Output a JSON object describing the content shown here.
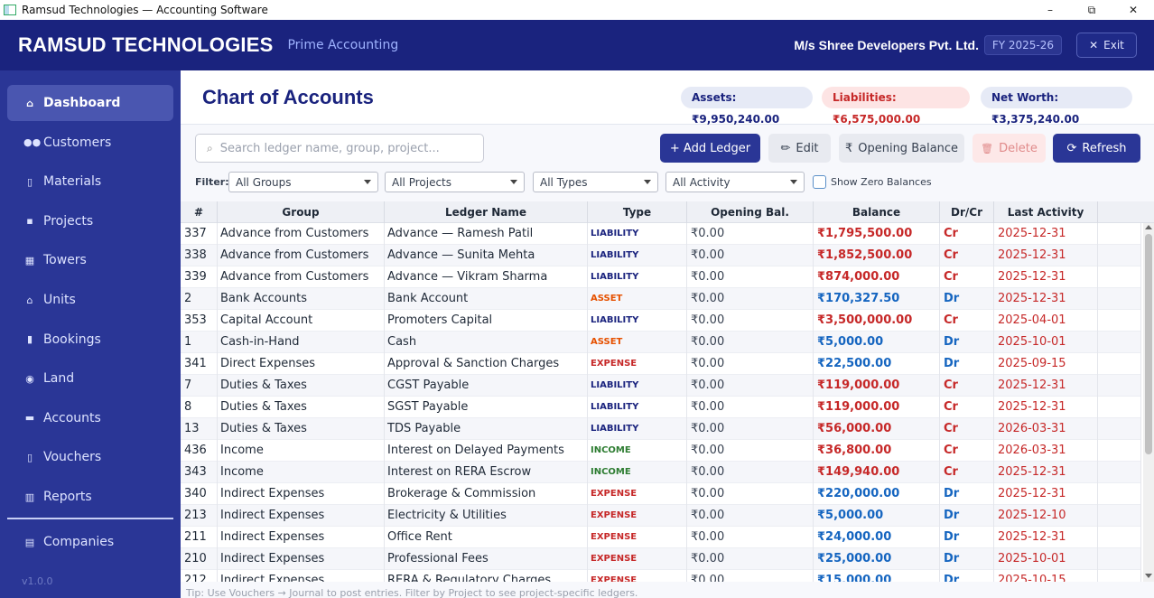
{
  "window": {
    "title": "Ramsud Technologies — Accounting Software",
    "minimize": "–",
    "maximize": "⧉",
    "close": "✕"
  },
  "header": {
    "brand": "RAMSUD TECHNOLOGIES",
    "subtitle": "Prime Accounting",
    "company": "M/s Shree Developers Pvt. Ltd.",
    "fy": "FY 2025-26",
    "exit_icon": "✕",
    "exit_label": "Exit"
  },
  "sidebar": {
    "items": [
      {
        "label": "Dashboard",
        "icon": "⌂",
        "icon_name": "home-icon",
        "active": true
      },
      {
        "label": "Customers",
        "icon": "●●",
        "icon_name": "users-icon",
        "active": false
      },
      {
        "label": "Materials",
        "icon": "▯",
        "icon_name": "material-icon",
        "active": false
      },
      {
        "label": "Projects",
        "icon": "▪",
        "icon_name": "project-icon",
        "active": false
      },
      {
        "label": "Towers",
        "icon": "▦",
        "icon_name": "tower-icon",
        "active": false
      },
      {
        "label": "Units",
        "icon": "⌂",
        "icon_name": "unit-icon",
        "active": false
      },
      {
        "label": "Bookings",
        "icon": "▮",
        "icon_name": "bookings-icon",
        "active": false
      },
      {
        "label": "Land",
        "icon": "◉",
        "icon_name": "globe-icon",
        "active": false
      },
      {
        "label": "Accounts",
        "icon": "▬",
        "icon_name": "accounts-icon",
        "active": false
      },
      {
        "label": "Vouchers",
        "icon": "▯",
        "icon_name": "voucher-icon",
        "active": false
      },
      {
        "label": "Reports",
        "icon": "▥",
        "icon_name": "reports-icon",
        "active": false
      }
    ],
    "companies": {
      "label": "Companies",
      "icon": "▤",
      "icon_name": "companies-icon"
    },
    "version": "v1.0.0"
  },
  "page": {
    "title": "Chart of Accounts",
    "assets": "Assets: ₹9,950,240.00",
    "liabilities": "Liabilities: ₹6,575,000.00",
    "net_worth": "Net Worth: ₹3,375,240.00"
  },
  "toolbar": {
    "search_icon": "⌕",
    "search_placeholder": "Search ledger name, group, project...",
    "add_label": "+ Add Ledger",
    "edit_icon": "✏",
    "edit_label": "Edit",
    "opening_icon": "₹",
    "opening_label": "Opening Balance",
    "delete_icon": "🗑",
    "delete_label": "Delete",
    "refresh_icon": "⟳",
    "refresh_label": "Refresh"
  },
  "filters": {
    "label": "Filter:",
    "groups": "All Groups",
    "projects": "All Projects",
    "types": "All Types",
    "activity": "All Activity",
    "zero_label": "Show Zero Balances"
  },
  "table": {
    "headers": [
      "#",
      "Group",
      "Ledger Name",
      "Type",
      "Opening Bal.",
      "Balance",
      "Dr/Cr",
      "Last Activity"
    ],
    "rows": [
      {
        "num": "337",
        "group": "Advance from Customers",
        "ledger": "Advance — Ramesh Patil",
        "type": "LIABILITY",
        "opening": "₹0.00",
        "balance": "₹1,795,500.00",
        "drcr": "Cr",
        "last": "2025-12-31"
      },
      {
        "num": "338",
        "group": "Advance from Customers",
        "ledger": "Advance — Sunita Mehta",
        "type": "LIABILITY",
        "opening": "₹0.00",
        "balance": "₹1,852,500.00",
        "drcr": "Cr",
        "last": "2025-12-31"
      },
      {
        "num": "339",
        "group": "Advance from Customers",
        "ledger": "Advance — Vikram Sharma",
        "type": "LIABILITY",
        "opening": "₹0.00",
        "balance": "₹874,000.00",
        "drcr": "Cr",
        "last": "2025-12-31"
      },
      {
        "num": "2",
        "group": "Bank Accounts",
        "ledger": "Bank Account",
        "type": "ASSET",
        "opening": "₹0.00",
        "balance": "₹170,327.50",
        "drcr": "Dr",
        "last": "2025-12-31"
      },
      {
        "num": "353",
        "group": "Capital Account",
        "ledger": "Promoters Capital",
        "type": "LIABILITY",
        "opening": "₹0.00",
        "balance": "₹3,500,000.00",
        "drcr": "Cr",
        "last": "2025-04-01"
      },
      {
        "num": "1",
        "group": "Cash-in-Hand",
        "ledger": "Cash",
        "type": "ASSET",
        "opening": "₹0.00",
        "balance": "₹5,000.00",
        "drcr": "Dr",
        "last": "2025-10-01"
      },
      {
        "num": "341",
        "group": "Direct Expenses",
        "ledger": "Approval & Sanction Charges",
        "type": "EXPENSE",
        "opening": "₹0.00",
        "balance": "₹22,500.00",
        "drcr": "Dr",
        "last": "2025-09-15"
      },
      {
        "num": "7",
        "group": "Duties & Taxes",
        "ledger": "CGST Payable",
        "type": "LIABILITY",
        "opening": "₹0.00",
        "balance": "₹119,000.00",
        "drcr": "Cr",
        "last": "2025-12-31"
      },
      {
        "num": "8",
        "group": "Duties & Taxes",
        "ledger": "SGST Payable",
        "type": "LIABILITY",
        "opening": "₹0.00",
        "balance": "₹119,000.00",
        "drcr": "Cr",
        "last": "2025-12-31"
      },
      {
        "num": "13",
        "group": "Duties & Taxes",
        "ledger": "TDS Payable",
        "type": "LIABILITY",
        "opening": "₹0.00",
        "balance": "₹56,000.00",
        "drcr": "Cr",
        "last": "2026-03-31"
      },
      {
        "num": "436",
        "group": "Income",
        "ledger": "Interest on Delayed Payments",
        "type": "INCOME",
        "opening": "₹0.00",
        "balance": "₹36,800.00",
        "drcr": "Cr",
        "last": "2026-03-31"
      },
      {
        "num": "343",
        "group": "Income",
        "ledger": "Interest on RERA Escrow",
        "type": "INCOME",
        "opening": "₹0.00",
        "balance": "₹149,940.00",
        "drcr": "Cr",
        "last": "2025-12-31"
      },
      {
        "num": "340",
        "group": "Indirect Expenses",
        "ledger": "Brokerage & Commission",
        "type": "EXPENSE",
        "opening": "₹0.00",
        "balance": "₹220,000.00",
        "drcr": "Dr",
        "last": "2025-12-31"
      },
      {
        "num": "213",
        "group": "Indirect Expenses",
        "ledger": "Electricity & Utilities",
        "type": "EXPENSE",
        "opening": "₹0.00",
        "balance": "₹5,000.00",
        "drcr": "Dr",
        "last": "2025-12-10"
      },
      {
        "num": "211",
        "group": "Indirect Expenses",
        "ledger": "Office Rent",
        "type": "EXPENSE",
        "opening": "₹0.00",
        "balance": "₹24,000.00",
        "drcr": "Dr",
        "last": "2025-12-31"
      },
      {
        "num": "210",
        "group": "Indirect Expenses",
        "ledger": "Professional Fees",
        "type": "EXPENSE",
        "opening": "₹0.00",
        "balance": "₹25,000.00",
        "drcr": "Dr",
        "last": "2025-10-01"
      },
      {
        "num": "212",
        "group": "Indirect Expenses",
        "ledger": "RERA & Regulatory Charges",
        "type": "EXPENSE",
        "opening": "₹0.00",
        "balance": "₹15,000.00",
        "drcr": "Dr",
        "last": "2025-10-15"
      }
    ]
  },
  "colors": {
    "LIABILITY": "#1a237e",
    "ASSET": "#e65100",
    "EXPENSE": "#c62828",
    "INCOME": "#2e7d32",
    "Cr": "#c62828",
    "Dr": "#1565c0"
  },
  "footer_tip": "Tip: Use Vouchers → Journal to post entries. Filter by Project to see project-specific ledgers."
}
